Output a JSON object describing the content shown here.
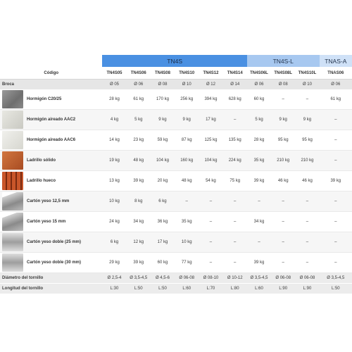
{
  "groups": [
    {
      "label": "TN4S",
      "span": 6
    },
    {
      "label": "TN4S-L",
      "span": 3
    },
    {
      "label": "TNAS-A",
      "span": 1
    }
  ],
  "code_header": "Código",
  "codes": [
    "TN4S05",
    "TN4S06",
    "TN4S08",
    "TN4S10",
    "TN4S12",
    "TN4S14",
    "TN4S06L",
    "TN4S08L",
    "TN4S10L",
    "TNAS06"
  ],
  "broca": {
    "label": "Broca",
    "values": [
      "Ø 05",
      "Ø 06",
      "Ø 08",
      "Ø 10",
      "Ø 12",
      "Ø 14",
      "Ø 06",
      "Ø 08",
      "Ø 10",
      "Ø 06"
    ]
  },
  "materials": [
    {
      "name": "Hormigón C20/25",
      "thumb": "concrete",
      "values": [
        "28 kg",
        "61 kg",
        "170 kg",
        "256 kg",
        "394 kg",
        "628 kg",
        "60 kg",
        "–",
        "–",
        "61 kg"
      ]
    },
    {
      "name": "Hormigón aireado AAC2",
      "thumb": "aac2",
      "values": [
        "4 kg",
        "5 kg",
        "9 kg",
        "9 kg",
        "17 kg",
        "–",
        "5 kg",
        "9 kg",
        "9 kg",
        "–"
      ]
    },
    {
      "name": "Hormigón aireado AAC6",
      "thumb": "aac6",
      "values": [
        "14 kg",
        "23 kg",
        "59 kg",
        "87 kg",
        "125 kg",
        "135 kg",
        "28 kg",
        "95 kg",
        "95 kg",
        "–"
      ]
    },
    {
      "name": "Ladrillo sólido",
      "thumb": "brick",
      "values": [
        "19 kg",
        "48 kg",
        "104 kg",
        "160 kg",
        "104 kg",
        "224 kg",
        "35 kg",
        "210 kg",
        "210 kg",
        "–"
      ]
    },
    {
      "name": "Ladrillo hueco",
      "thumb": "hollow",
      "values": [
        "13 kg",
        "39 kg",
        "20 kg",
        "48 kg",
        "54 kg",
        "75 kg",
        "39 kg",
        "46 kg",
        "46 kg",
        "39 kg"
      ]
    },
    {
      "name": "Cartón yeso 12,5 mm",
      "thumb": "board",
      "values": [
        "10 kg",
        "8 kg",
        "6 kg",
        "–",
        "–",
        "–",
        "–",
        "–",
        "–",
        "–"
      ]
    },
    {
      "name": "Cartón yeso 15 mm",
      "thumb": "board",
      "values": [
        "24 kg",
        "34 kg",
        "36 kg",
        "35 kg",
        "–",
        "–",
        "34 kg",
        "–",
        "–",
        "–"
      ]
    },
    {
      "name": "Cartón yeso doble (25 mm)",
      "thumb": "board2",
      "values": [
        "6 kg",
        "12 kg",
        "17 kg",
        "10 kg",
        "–",
        "–",
        "–",
        "–",
        "–",
        "–"
      ]
    },
    {
      "name": "Cartón yeso doble (30 mm)",
      "thumb": "board2",
      "values": [
        "29 kg",
        "39 kg",
        "60 kg",
        "77 kg",
        "–",
        "–",
        "39 kg",
        "–",
        "–",
        "–"
      ]
    }
  ],
  "footer": [
    {
      "label": "Diámetro del tornillo",
      "values": [
        "Ø 2,5-4",
        "Ø 3,5-4,5",
        "Ø 4,5-6",
        "Ø 06-08",
        "Ø 08-10",
        "Ø 10-12",
        "Ø 3,5-4,5",
        "Ø 06-08",
        "Ø 06-08",
        "Ø 3,5-4,5"
      ]
    },
    {
      "label": "Longitud del tornillo",
      "values": [
        "L:30",
        "L:50",
        "L:50",
        "L:60",
        "L:70",
        "L:80",
        "L:60",
        "L:90",
        "L:90",
        "L:50"
      ]
    }
  ]
}
